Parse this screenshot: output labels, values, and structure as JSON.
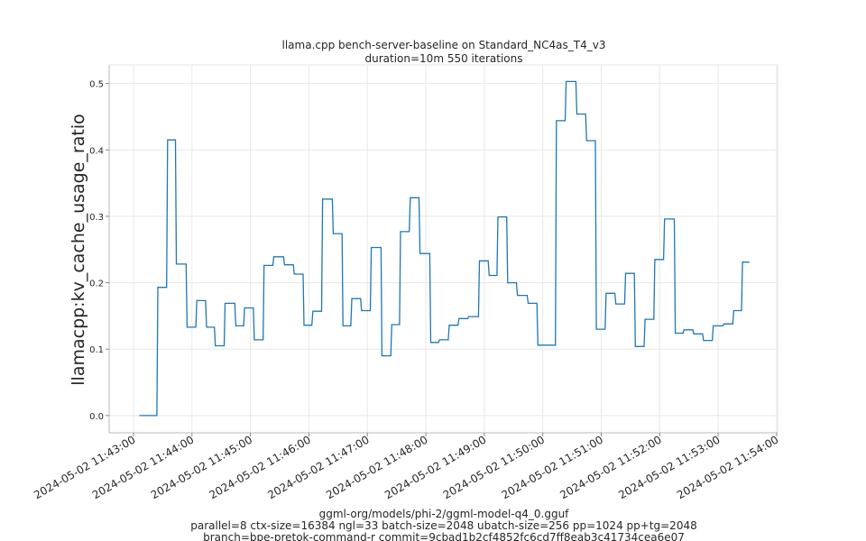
{
  "chart_data": {
    "type": "line",
    "title": "llama.cpp bench-server-baseline on Standard_NC4as_T4_v3",
    "subtitle": "duration=10m 550 iterations",
    "ylabel": "llamacpp:kv_cache_usage_ratio",
    "xlabel_lines": [
      "ggml-org/models/phi-2/ggml-model-q4_0.gguf",
      "parallel=8 ctx-size=16384 ngl=33 batch-size=2048 ubatch-size=256 pp=1024 pp+tg=2048",
      "branch=bpe-pretok-command-r commit=9cbad1b2cf4852fc6cd7ff8eab3c41734cea6e07"
    ],
    "date": "2024-05-02",
    "xlim": [
      "11:42:35",
      "11:54:01"
    ],
    "ylim": [
      -0.026,
      0.528
    ],
    "grid": true,
    "line_color": "#1f77b4",
    "x_ticks": [
      "2024-05-02 11:43:00",
      "2024-05-02 11:44:00",
      "2024-05-02 11:45:00",
      "2024-05-02 11:46:00",
      "2024-05-02 11:47:00",
      "2024-05-02 11:48:00",
      "2024-05-02 11:49:00",
      "2024-05-02 11:50:00",
      "2024-05-02 11:51:00",
      "2024-05-02 11:52:00",
      "2024-05-02 11:53:00",
      "2024-05-02 11:54:00"
    ],
    "y_ticks": [
      "0.0",
      "0.1",
      "0.2",
      "0.3",
      "0.4",
      "0.5"
    ],
    "series": [
      {
        "step": true,
        "end": "11:53:32",
        "points": [
          [
            "11:43:06",
            0.0
          ],
          [
            "11:43:25",
            0.193
          ],
          [
            "11:43:35",
            0.415
          ],
          [
            "11:43:44",
            0.228
          ],
          [
            "11:43:55",
            0.133
          ],
          [
            "11:44:05",
            0.173
          ],
          [
            "11:44:15",
            0.133
          ],
          [
            "11:44:24",
            0.105
          ],
          [
            "11:44:34",
            0.169
          ],
          [
            "11:44:45",
            0.135
          ],
          [
            "11:44:54",
            0.162
          ],
          [
            "11:45:04",
            0.114
          ],
          [
            "11:45:14",
            0.226
          ],
          [
            "11:45:24",
            0.239
          ],
          [
            "11:45:35",
            0.227
          ],
          [
            "11:45:45",
            0.213
          ],
          [
            "11:45:55",
            0.136
          ],
          [
            "11:46:04",
            0.157
          ],
          [
            "11:46:14",
            0.326
          ],
          [
            "11:46:25",
            0.274
          ],
          [
            "11:46:35",
            0.135
          ],
          [
            "11:46:44",
            0.176
          ],
          [
            "11:46:54",
            0.158
          ],
          [
            "11:47:04",
            0.253
          ],
          [
            "11:47:15",
            0.09
          ],
          [
            "11:47:25",
            0.137
          ],
          [
            "11:47:34",
            0.277
          ],
          [
            "11:47:44",
            0.328
          ],
          [
            "11:47:54",
            0.244
          ],
          [
            "11:48:05",
            0.11
          ],
          [
            "11:48:14",
            0.114
          ],
          [
            "11:48:24",
            0.136
          ],
          [
            "11:48:34",
            0.146
          ],
          [
            "11:48:44",
            0.149
          ],
          [
            "11:48:55",
            0.233
          ],
          [
            "11:49:05",
            0.211
          ],
          [
            "11:49:14",
            0.299
          ],
          [
            "11:49:24",
            0.2
          ],
          [
            "11:49:34",
            0.181
          ],
          [
            "11:49:45",
            0.169
          ],
          [
            "11:49:55",
            0.106
          ],
          [
            "11:50:14",
            0.444
          ],
          [
            "11:50:24",
            0.503
          ],
          [
            "11:50:35",
            0.454
          ],
          [
            "11:50:45",
            0.414
          ],
          [
            "11:50:55",
            0.13
          ],
          [
            "11:51:05",
            0.184
          ],
          [
            "11:51:15",
            0.168
          ],
          [
            "11:51:25",
            0.214
          ],
          [
            "11:51:35",
            0.104
          ],
          [
            "11:51:45",
            0.145
          ],
          [
            "11:51:55",
            0.235
          ],
          [
            "11:52:05",
            0.296
          ],
          [
            "11:52:16",
            0.124
          ],
          [
            "11:52:25",
            0.129
          ],
          [
            "11:52:35",
            0.123
          ],
          [
            "11:52:45",
            0.113
          ],
          [
            "11:52:55",
            0.135
          ],
          [
            "11:53:06",
            0.138
          ],
          [
            "11:53:16",
            0.158
          ],
          [
            "11:53:25",
            0.231
          ]
        ]
      }
    ]
  }
}
